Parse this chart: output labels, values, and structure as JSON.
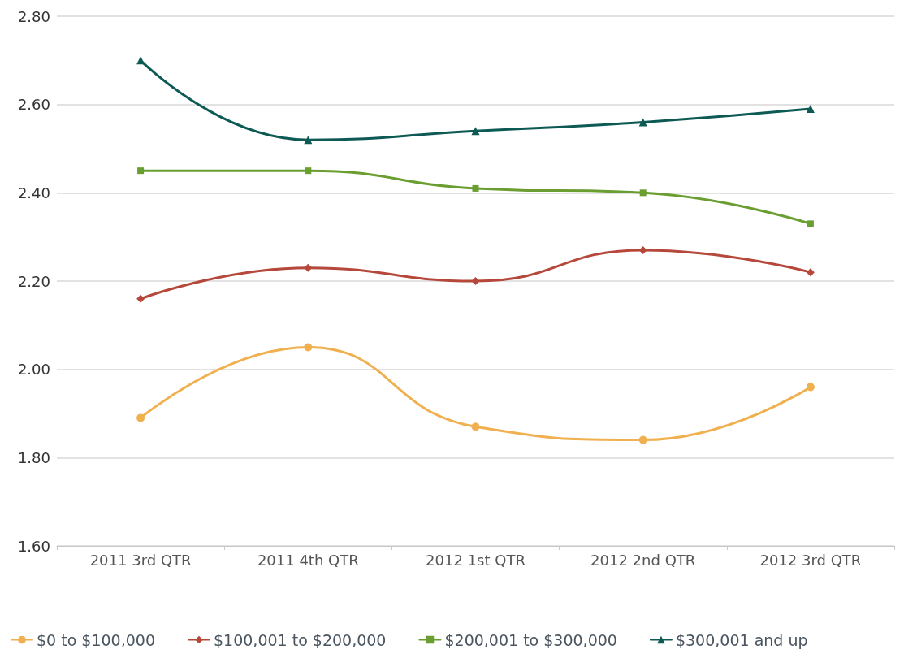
{
  "chart_data": {
    "type": "line",
    "categories": [
      "2011 3rd QTR",
      "2011 4th QTR",
      "2012 1st QTR",
      "2012 2nd QTR",
      "2012 3rd QTR"
    ],
    "series": [
      {
        "name": "$0 to $100,000",
        "color": "#f0b050",
        "marker": "circle",
        "values": [
          1.89,
          2.05,
          1.87,
          1.84,
          1.96
        ]
      },
      {
        "name": "$100,001 to $200,000",
        "color": "#b5483a",
        "marker": "diamond",
        "values": [
          2.16,
          2.23,
          2.2,
          2.27,
          2.22
        ]
      },
      {
        "name": "$200,001 to $300,000",
        "color": "#6a9e30",
        "marker": "square",
        "values": [
          2.45,
          2.45,
          2.41,
          2.4,
          2.33
        ]
      },
      {
        "name": "$300,001 and up",
        "color": "#0d5a55",
        "marker": "triangle",
        "values": [
          2.7,
          2.52,
          2.54,
          2.56,
          2.59
        ]
      }
    ],
    "ylim": [
      1.6,
      2.8
    ],
    "yticks": [
      {
        "value": 1.6,
        "label": "1.60"
      },
      {
        "value": 1.8,
        "label": "1.80"
      },
      {
        "value": 2.0,
        "label": "2.00"
      },
      {
        "value": 2.2,
        "label": "2.20"
      },
      {
        "value": 2.4,
        "label": "2.40"
      },
      {
        "value": 2.6,
        "label": "2.60"
      },
      {
        "value": 2.8,
        "label": "2.80"
      }
    ],
    "grid": "y",
    "legend": "bottom",
    "line_style": "solid"
  }
}
